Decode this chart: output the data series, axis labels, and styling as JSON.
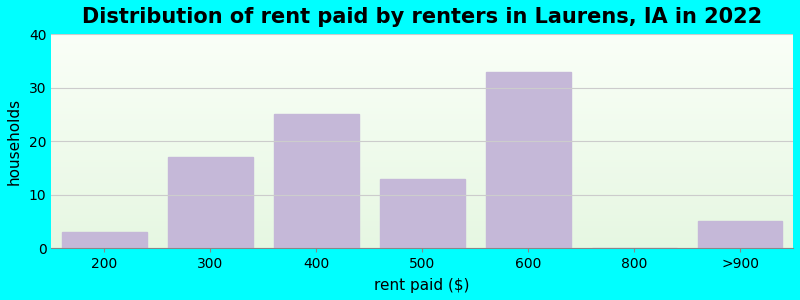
{
  "categories": [
    "200",
    "300",
    "400",
    "500",
    "600",
    "800",
    ">900"
  ],
  "values": [
    3,
    17,
    25,
    13,
    33,
    0,
    5
  ],
  "bar_color": "#C5B8D8",
  "title": "Distribution of rent paid by renters in Laurens, IA in 2022",
  "xlabel": "rent paid ($)",
  "ylabel": "households",
  "ylim": [
    0,
    40
  ],
  "yticks": [
    0,
    10,
    20,
    30,
    40
  ],
  "title_fontsize": 15,
  "axis_label_fontsize": 11,
  "tick_fontsize": 10,
  "outer_bg_color": "#00FFFF",
  "grid_color": "#CCCCCC"
}
